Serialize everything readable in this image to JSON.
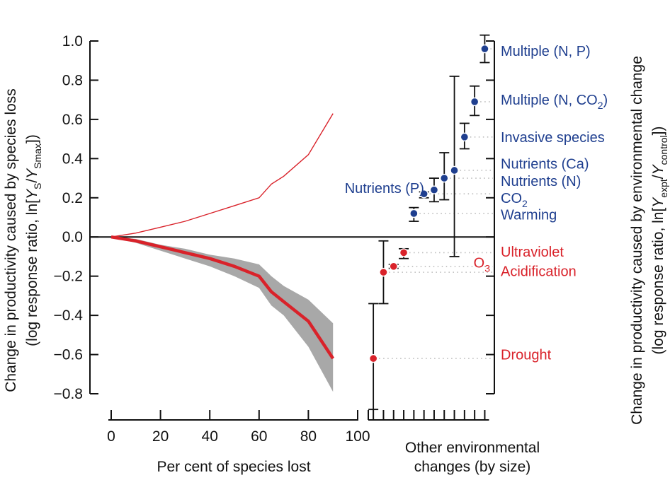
{
  "chart_data": {
    "type": "line",
    "left_axis": {
      "label_parts": [
        "Change in productivity caused by species loss",
        "(log response ratio, ln[",
        "Y",
        "S",
        "/",
        "Y",
        "Smax",
        "])"
      ],
      "ylim": [
        -0.8,
        1.0
      ],
      "yticks": [
        "−0.8",
        "−0.6",
        "−0.4",
        "−0.2",
        "0.0",
        "0.2",
        "0.4",
        "0.6",
        "0.8",
        "1.0"
      ]
    },
    "right_axis": {
      "label_parts": [
        "Change in productivity caused by environmental change",
        "(log response ratio, ln[",
        "Y",
        "expt",
        "/",
        "Y",
        "control",
        "])"
      ]
    },
    "x_axis": {
      "label": "Per cent of species lost",
      "xlim": [
        0,
        100
      ],
      "xticks": [
        "0",
        "20",
        "40",
        "60",
        "80",
        "100"
      ]
    },
    "env_axis_label": [
      "Other environmental",
      "changes (by size)"
    ],
    "series": [
      {
        "color": "#d9222a",
        "style": "thin",
        "x": [
          0,
          10,
          20,
          30,
          40,
          50,
          60,
          65,
          70,
          80,
          90
        ],
        "y": [
          0,
          0.02,
          0.05,
          0.08,
          0.12,
          0.16,
          0.2,
          0.27,
          0.31,
          0.42,
          0.63
        ]
      },
      {
        "color": "#d9222a",
        "style": "thick",
        "x": [
          0,
          10,
          20,
          30,
          40,
          50,
          60,
          65,
          70,
          80,
          90
        ],
        "y": [
          0,
          -0.02,
          -0.05,
          -0.08,
          -0.11,
          -0.15,
          -0.2,
          -0.28,
          -0.33,
          -0.43,
          -0.62
        ],
        "band_low": [
          0,
          -0.03,
          -0.07,
          -0.11,
          -0.15,
          -0.2,
          -0.26,
          -0.35,
          -0.4,
          -0.56,
          -0.79
        ],
        "band_high": [
          0,
          -0.01,
          -0.04,
          -0.06,
          -0.09,
          -0.11,
          -0.14,
          -0.2,
          -0.25,
          -0.32,
          -0.44
        ]
      }
    ],
    "environmental_changes": [
      {
        "label": "Drought",
        "value": -0.62,
        "low": -0.88,
        "high": -0.34,
        "color": "red",
        "label_y": -0.6
      },
      {
        "label": "Acidification",
        "value": -0.18,
        "low": -0.34,
        "high": -0.02,
        "color": "red",
        "label_y": -0.175
      },
      {
        "label": "O",
        "subscript": "3",
        "value": -0.15,
        "low": -0.16,
        "high": -0.14,
        "color": "red",
        "label_y": -0.13
      },
      {
        "label": "Ultraviolet",
        "value": -0.08,
        "low": -0.11,
        "high": -0.06,
        "color": "red",
        "label_y": -0.075
      },
      {
        "label": "Warming",
        "value": 0.12,
        "low": 0.08,
        "high": 0.15,
        "color": "blue",
        "label_y": 0.115
      },
      {
        "label": "CO",
        "subscript": "2",
        "value": 0.22,
        "low": 0.2,
        "high": 0.23,
        "color": "blue",
        "label_y": 0.2
      },
      {
        "label": "Nutrients (P)",
        "value": 0.24,
        "low": 0.18,
        "high": 0.3,
        "color": "blue",
        "label_y": 0.25,
        "label_side": "left"
      },
      {
        "label": "Nutrients (N)",
        "value": 0.3,
        "low": 0.19,
        "high": 0.43,
        "color": "blue",
        "label_y": 0.285
      },
      {
        "label": "Nutrients (Ca)",
        "value": 0.34,
        "low": -0.1,
        "high": 0.82,
        "color": "blue",
        "label_y": 0.375
      },
      {
        "label": "Invasive species",
        "value": 0.51,
        "low": 0.45,
        "high": 0.58,
        "color": "blue",
        "label_y": 0.51
      },
      {
        "label": "Multiple (N, CO",
        "subscript": "2",
        "suffix": ")",
        "value": 0.69,
        "low": 0.62,
        "high": 0.77,
        "color": "blue",
        "label_y": 0.7
      },
      {
        "label": "Multiple (N, P)",
        "value": 0.96,
        "low": 0.89,
        "high": 1.03,
        "color": "blue",
        "label_y": 0.95
      }
    ],
    "colors": {
      "red": "#d9222a",
      "blue": "#1f3f8f",
      "band": "#a8a8a8",
      "dots": "#bbbbbb"
    }
  }
}
